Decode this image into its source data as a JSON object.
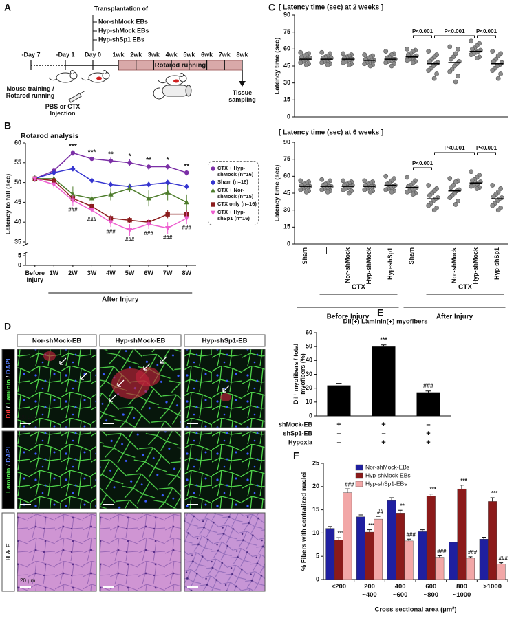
{
  "panel_labels": [
    "A",
    "B",
    "C",
    "D",
    "E",
    "F"
  ],
  "panel_a": {
    "transplant_title": "Transplantation of",
    "groups": [
      "Nor-shMock EBs",
      "Hyp-shMock EBs",
      "Hyp-shSp1 EBs"
    ],
    "timepoints": [
      "-Day 7",
      "-Day 1",
      "Day 0",
      "1wk",
      "2wk",
      "3wk",
      "4wk",
      "5wk",
      "6wk",
      "7wk",
      "8wk"
    ],
    "bar_label": "Rotarod running",
    "training": "Mouse training / Rotarod running",
    "injection": "PBS or CTX Injection",
    "end": "Tissue sampling"
  },
  "panel_d": {
    "columns": [
      "Nor-shMock-EB",
      "Hyp-shMock-EB",
      "Hyp-shSp1-EB"
    ],
    "rows": [
      [
        {
          "text": "DiI",
          "color": "#ff3b3b"
        },
        {
          "text": " / ",
          "color": "#ffffff"
        },
        {
          "text": "Laminin",
          "color": "#4fe04a"
        },
        {
          "text": " / ",
          "color": "#ffffff"
        },
        {
          "text": "DAPI",
          "color": "#5a82ff"
        }
      ],
      [
        {
          "text": "Laminin",
          "color": "#4fe04a"
        },
        {
          "text": " / ",
          "color": "#ffffff"
        },
        {
          "text": "DAPI",
          "color": "#5a82ff"
        }
      ],
      [
        {
          "text": "H & E",
          "color": "#000000"
        }
      ]
    ],
    "scale_bar": "20 µm"
  },
  "chart_data": [
    {
      "type": "line",
      "title": "Rotarod analysis",
      "ylabel": "Latency to fall (sec)",
      "xlabel": "After Injury",
      "categories": [
        "Before Injury",
        "1W",
        "2W",
        "3W",
        "4W",
        "5W",
        "6W",
        "7W",
        "8W"
      ],
      "ylim": [
        0,
        60
      ],
      "ybreak": [
        5,
        35
      ],
      "yticks": [
        0,
        5,
        35,
        40,
        45,
        50,
        55,
        60
      ],
      "series": [
        {
          "name": "CTX + Hyp-shMock (n=16)",
          "color": "#7b2fa6",
          "marker": "circle",
          "values": [
            51,
            53,
            57.5,
            56,
            55.5,
            55,
            54,
            54,
            52.5
          ],
          "errors": [
            0.8,
            0.8,
            0.7,
            0.7,
            0.8,
            0.9,
            0.8,
            0.7,
            0.7
          ]
        },
        {
          "name": "Sham (n=16)",
          "color": "#3535d0",
          "marker": "diamond",
          "values": [
            51,
            52.5,
            53.5,
            50.5,
            49.5,
            49,
            49.5,
            50,
            49
          ],
          "errors": [
            0.6,
            0.6,
            0.6,
            0.8,
            0.6,
            0.8,
            0.6,
            0.6,
            0.6
          ]
        },
        {
          "name": "CTX + Nor-shMock (n=15)",
          "color": "#4e7d2c",
          "marker": "triangle",
          "values": [
            51,
            51,
            47,
            46,
            47,
            48.5,
            46,
            47.5,
            45
          ],
          "errors": [
            0.8,
            1,
            2,
            1.5,
            1.5,
            1,
            2,
            2,
            2
          ]
        },
        {
          "name": "CTX only (n=16)",
          "color": "#8b1c1c",
          "marker": "square",
          "values": [
            51,
            50.5,
            46,
            44,
            41,
            40.5,
            40,
            42,
            42
          ],
          "errors": [
            0.6,
            0.6,
            1,
            1,
            0.8,
            0.8,
            0.8,
            1,
            1
          ]
        },
        {
          "name": "CTX + Hyp-shSp1 (n=16)",
          "color": "#ee5fd0",
          "marker": "triangle-down",
          "values": [
            51,
            49.5,
            45.5,
            43,
            40,
            38,
            39.5,
            38.5,
            41
          ],
          "errors": [
            0.6,
            1,
            1.5,
            1.5,
            1.2,
            1.5,
            1.2,
            1.5,
            1.5
          ]
        }
      ],
      "annotations_top": [
        {
          "category": "2W",
          "label": "***"
        },
        {
          "category": "3W",
          "label": "***"
        },
        {
          "category": "4W",
          "label": "**"
        },
        {
          "category": "5W",
          "label": "*"
        },
        {
          "category": "6W",
          "label": "**"
        },
        {
          "category": "7W",
          "label": "*"
        },
        {
          "category": "8W",
          "label": "**"
        }
      ],
      "annotations_bottom": [
        {
          "category": "2W",
          "label": "###"
        },
        {
          "category": "3W",
          "label": "###"
        },
        {
          "category": "4W",
          "label": "###"
        },
        {
          "category": "5W",
          "label": "###"
        },
        {
          "category": "6W",
          "label": "###"
        },
        {
          "category": "7W",
          "label": "###"
        },
        {
          "category": "8W",
          "label": "###"
        }
      ],
      "legend": "right"
    },
    {
      "type": "strip",
      "title": "[ Latency time (sec) at 2 weeks ]",
      "ylabel": "Latency time (sec)",
      "ylim": [
        0,
        90
      ],
      "yticks": [
        0,
        15,
        30,
        45,
        60,
        75,
        90
      ],
      "color": "#8c8c8c",
      "points": [
        [
          57,
          56,
          55,
          54,
          53,
          52,
          51,
          50,
          49,
          48,
          47,
          46
        ],
        [
          57,
          56,
          54,
          53,
          52,
          52,
          51,
          50,
          49,
          48,
          47,
          46
        ],
        [
          56,
          55,
          54,
          53,
          52,
          51,
          51,
          50,
          49,
          48,
          47,
          46
        ],
        [
          55,
          54,
          53,
          52,
          51,
          50,
          50,
          49,
          48,
          47,
          46,
          45
        ],
        [
          58,
          56,
          55,
          53,
          52,
          51,
          51,
          50,
          49,
          48,
          47,
          45
        ],
        [
          60,
          59,
          58,
          56,
          55,
          54,
          53,
          52,
          51,
          50,
          49,
          48
        ],
        [
          58,
          55,
          53,
          51,
          49,
          48,
          47,
          45,
          43,
          41,
          38,
          34
        ],
        [
          62,
          60,
          56,
          53,
          51,
          49,
          47,
          45,
          42,
          40,
          36,
          31
        ],
        [
          67,
          65,
          63,
          61,
          60,
          59,
          58,
          57,
          56,
          55,
          53,
          52
        ],
        [
          58,
          56,
          54,
          51,
          49,
          48,
          46,
          45,
          43,
          41,
          38,
          34
        ]
      ],
      "means": [
        51,
        51,
        51,
        50,
        51,
        53,
        47,
        48,
        58,
        47
      ],
      "comparisons": [
        "P<0.001",
        "P<0.001",
        "P<0.001"
      ]
    },
    {
      "type": "strip",
      "title": "[ Latency time (sec) at 6 weeks ]",
      "ylabel": "Latency time (sec)",
      "categories": [
        "Sham",
        "—",
        "Nor-shMock",
        "Hyp-shMock",
        "Hyp-shSp1",
        "Sham",
        "—",
        "Nor-shMock",
        "Hyp-shMock",
        "Hyp-shSp1"
      ],
      "ylim": [
        0,
        90
      ],
      "yticks": [
        0,
        15,
        30,
        45,
        60,
        75,
        90
      ],
      "color": "#8c8c8c",
      "points": [
        [
          56,
          55,
          54,
          53,
          52,
          51,
          51,
          50,
          49,
          48,
          47,
          46
        ],
        [
          57,
          56,
          54,
          53,
          52,
          51,
          51,
          50,
          49,
          48,
          47,
          46
        ],
        [
          56,
          55,
          54,
          53,
          52,
          52,
          51,
          50,
          49,
          48,
          47,
          45
        ],
        [
          56,
          55,
          54,
          53,
          52,
          51,
          51,
          50,
          49,
          48,
          47,
          46
        ],
        [
          60,
          58,
          56,
          54,
          53,
          52,
          51,
          50,
          49,
          48,
          47,
          46
        ],
        [
          59,
          56,
          54,
          52,
          51,
          50,
          49,
          48,
          47,
          46,
          45,
          44
        ],
        [
          52,
          49,
          47,
          45,
          43,
          41,
          40,
          38,
          36,
          34,
          32,
          30
        ],
        [
          58,
          56,
          55,
          52,
          50,
          48,
          47,
          45,
          43,
          41,
          38,
          35
        ],
        [
          64,
          61,
          59,
          57,
          56,
          55,
          54,
          53,
          52,
          51,
          50,
          49
        ],
        [
          52,
          49,
          46,
          44,
          42,
          41,
          40,
          38,
          36,
          34,
          32,
          30
        ]
      ],
      "means": [
        51,
        51,
        51,
        51,
        52,
        50,
        40,
        47,
        54,
        40
      ],
      "comparisons": [
        "P<0.001",
        "P<0.001",
        "P<0.001"
      ],
      "group_labels": [
        "CTX",
        "CTX"
      ],
      "phase_labels": [
        "Before Injury",
        "After Injury"
      ]
    },
    {
      "type": "bar",
      "title": "DiI(+) Laminin(+) myofibers",
      "ylabel": "DiI⁺ myofibers / total myofibers (%)",
      "values": [
        22,
        50,
        17
      ],
      "errors": [
        1.5,
        1.2,
        1
      ],
      "color": "#000000",
      "ylim": [
        0,
        60
      ],
      "yticks": [
        0,
        10,
        20,
        30,
        40,
        50,
        60
      ],
      "annotations": [
        {
          "index": 1,
          "label": "***"
        },
        {
          "index": 2,
          "label": "###"
        }
      ],
      "conditions": [
        {
          "name": "shMock-EB",
          "marks": [
            "+",
            "+",
            "–"
          ]
        },
        {
          "name": "shSp1-EB",
          "marks": [
            "–",
            "–",
            "+"
          ]
        },
        {
          "name": "Hypoxia",
          "marks": [
            "–",
            "+",
            "+"
          ]
        }
      ]
    },
    {
      "type": "grouped_bar",
      "ylabel": "% Fibers with centralized nuclei",
      "xlabel": "Cross sectional area (µm²)",
      "categories": [
        "<200",
        "200 ~400",
        "400 ~600",
        "600 ~800",
        "800 ~1000",
        ">1000"
      ],
      "ylim": [
        0,
        25
      ],
      "yticks": [
        0,
        5,
        10,
        15,
        20,
        25
      ],
      "series": [
        {
          "name": "Nor-shMock-EBs",
          "color": "#1f1fa0",
          "values": [
            11,
            13.5,
            17,
            10.3,
            8,
            8.7
          ],
          "errors": [
            0.4,
            0.4,
            0.6,
            0.4,
            0.5,
            0.4
          ]
        },
        {
          "name": "Hyp-shMock-EBs",
          "color": "#8b1a1a",
          "values": [
            8.5,
            10.2,
            14.3,
            18,
            19.5,
            16.8
          ],
          "errors": [
            0.5,
            0.5,
            0.6,
            0.4,
            0.8,
            0.8
          ],
          "annotations": [
            "***",
            "***",
            "**",
            "***",
            "***",
            "***"
          ]
        },
        {
          "name": "Hyp-shSp1-EBs",
          "color": "#f2a7a7",
          "values": [
            18.7,
            13,
            8.3,
            4.8,
            4.6,
            3.3
          ],
          "errors": [
            0.8,
            0.6,
            0.4,
            0.3,
            0.3,
            0.3
          ],
          "annotations": [
            "###",
            "##",
            "###",
            "###",
            "###",
            "###"
          ]
        }
      ],
      "legend": "top"
    }
  ]
}
